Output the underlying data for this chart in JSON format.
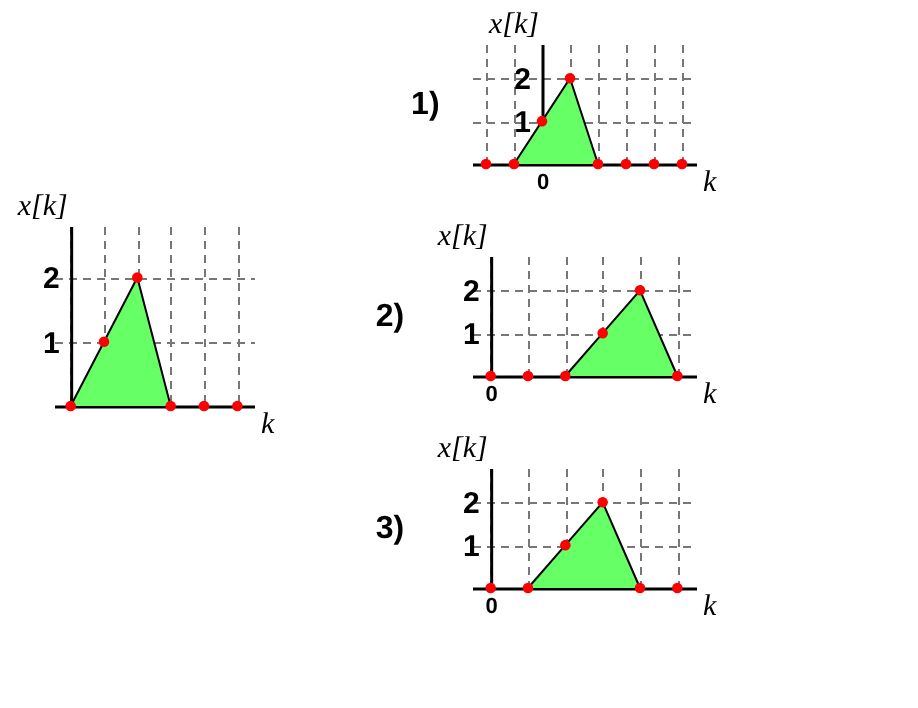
{
  "chart_data": [
    {
      "type": "area",
      "xlabel": "k",
      "ylabel": "x[k]",
      "categories": [
        null,
        null,
        null,
        null,
        null,
        null
      ],
      "ylim": [
        0,
        2.8
      ],
      "yticks": [
        1,
        2
      ],
      "grid": true,
      "series": [
        {
          "color": "#66ff66",
          "values": [
            0,
            1,
            2,
            0,
            null,
            null
          ]
        },
        {
          "type": "scatter",
          "color": "#ff0000",
          "marker": "circle",
          "values": [
            0,
            1,
            2,
            0,
            0,
            0
          ]
        }
      ]
    },
    {
      "type": "area",
      "title": "1)",
      "xlabel": "k",
      "ylabel": "x[k]",
      "categories": [
        null,
        null,
        "0",
        null,
        null,
        null,
        null,
        null
      ],
      "ylim": [
        0,
        2.8
      ],
      "yticks": [
        1,
        2
      ],
      "grid": true,
      "series": [
        {
          "color": "#66ff66",
          "values": [
            null,
            0,
            1,
            2,
            0,
            null,
            null,
            null
          ]
        },
        {
          "type": "scatter",
          "color": "#ff0000",
          "marker": "circle",
          "values": [
            0,
            0,
            1,
            2,
            0,
            0,
            0,
            0
          ]
        }
      ]
    },
    {
      "type": "area",
      "title": "2)",
      "xlabel": "k",
      "ylabel": "x[k]",
      "categories": [
        "0",
        null,
        null,
        null,
        null,
        null
      ],
      "ylim": [
        0,
        2.8
      ],
      "yticks": [
        1,
        2
      ],
      "grid": true,
      "series": [
        {
          "color": "#66ff66",
          "values": [
            null,
            null,
            0,
            1,
            2,
            0
          ]
        },
        {
          "type": "scatter",
          "color": "#ff0000",
          "marker": "circle",
          "values": [
            0,
            0,
            0,
            1,
            2,
            0
          ]
        }
      ]
    },
    {
      "type": "area",
      "title": "3)",
      "xlabel": "k",
      "ylabel": "x[k]",
      "categories": [
        "0",
        null,
        null,
        null,
        null,
        null
      ],
      "ylim": [
        0,
        2.8
      ],
      "yticks": [
        1,
        2
      ],
      "grid": true,
      "series": [
        {
          "color": "#66ff66",
          "values": [
            null,
            0,
            1,
            2,
            0,
            null
          ]
        },
        {
          "type": "scatter",
          "color": "#ff0000",
          "marker": "circle",
          "values": [
            0,
            0,
            1,
            2,
            0,
            0
          ]
        }
      ]
    }
  ]
}
